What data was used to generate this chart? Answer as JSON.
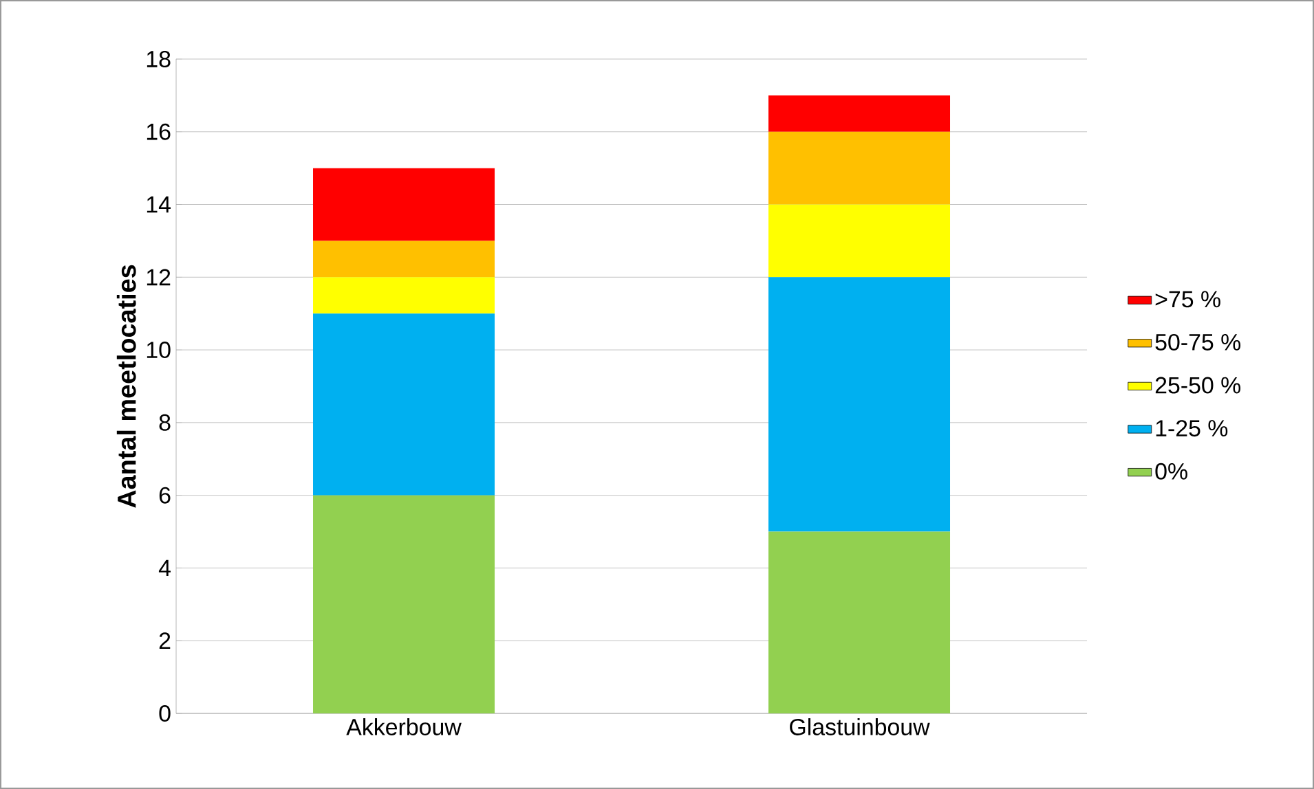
{
  "chart_data": {
    "type": "bar",
    "stacked": true,
    "ylabel": "Aantal meetlocaties",
    "categories": [
      "Akkerbouw",
      "Glastuinbouw"
    ],
    "series": [
      {
        "name": "0%",
        "color": "#92d050",
        "values": [
          6,
          5
        ]
      },
      {
        "name": "1-25 %",
        "color": "#00b0f0",
        "values": [
          5,
          7
        ]
      },
      {
        "name": "25-50 %",
        "color": "#ffff00",
        "values": [
          1,
          2
        ]
      },
      {
        "name": "50-75 %",
        "color": "#ffc000",
        "values": [
          1,
          2
        ]
      },
      {
        "name": ">75 %",
        "color": "#ff0000",
        "values": [
          2,
          1
        ]
      }
    ],
    "ylim": [
      0,
      18
    ],
    "yticks": [
      0,
      2,
      4,
      6,
      8,
      10,
      12,
      14,
      16,
      18
    ],
    "grid": "y",
    "legend": "right"
  }
}
